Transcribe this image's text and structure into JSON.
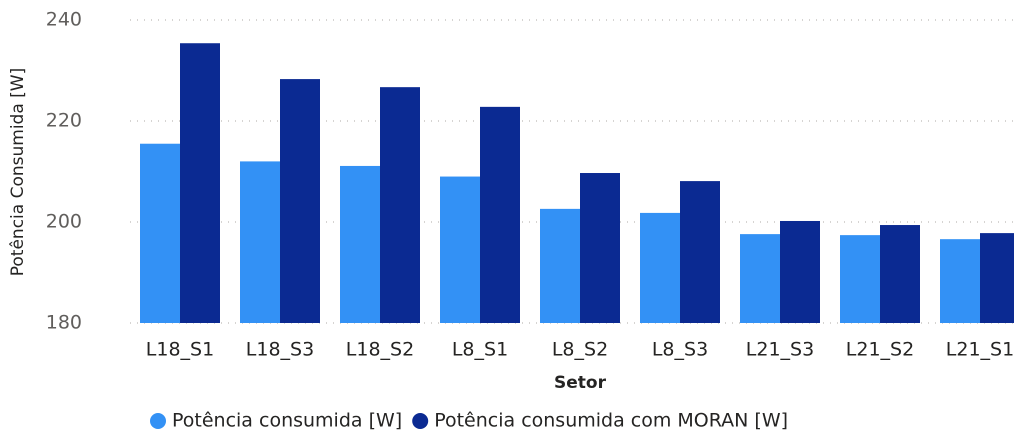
{
  "chart_data": {
    "type": "bar",
    "categories": [
      "L18_S1",
      "L18_S3",
      "L18_S2",
      "L8_S1",
      "L8_S2",
      "L8_S3",
      "L21_S3",
      "L21_S2",
      "L21_S1"
    ],
    "series": [
      {
        "name": "Potência consumida [W]",
        "color": "#3391f5",
        "values": [
          215.5,
          212,
          211.1,
          209,
          202.6,
          201.8,
          197.6,
          197.4,
          196.6
        ]
      },
      {
        "name": "Potência consumida com MORAN [W]",
        "color": "#0b2a92",
        "values": [
          235.4,
          228.3,
          226.7,
          222.8,
          209.7,
          208.1,
          200.2,
          199.4,
          197.8
        ]
      }
    ],
    "xlabel": "Setor",
    "ylabel": "Potência Consumida [W]",
    "ylim": [
      180,
      240
    ],
    "yticks": [
      180,
      200,
      220,
      240
    ],
    "grid": true,
    "legend": "bottom"
  }
}
